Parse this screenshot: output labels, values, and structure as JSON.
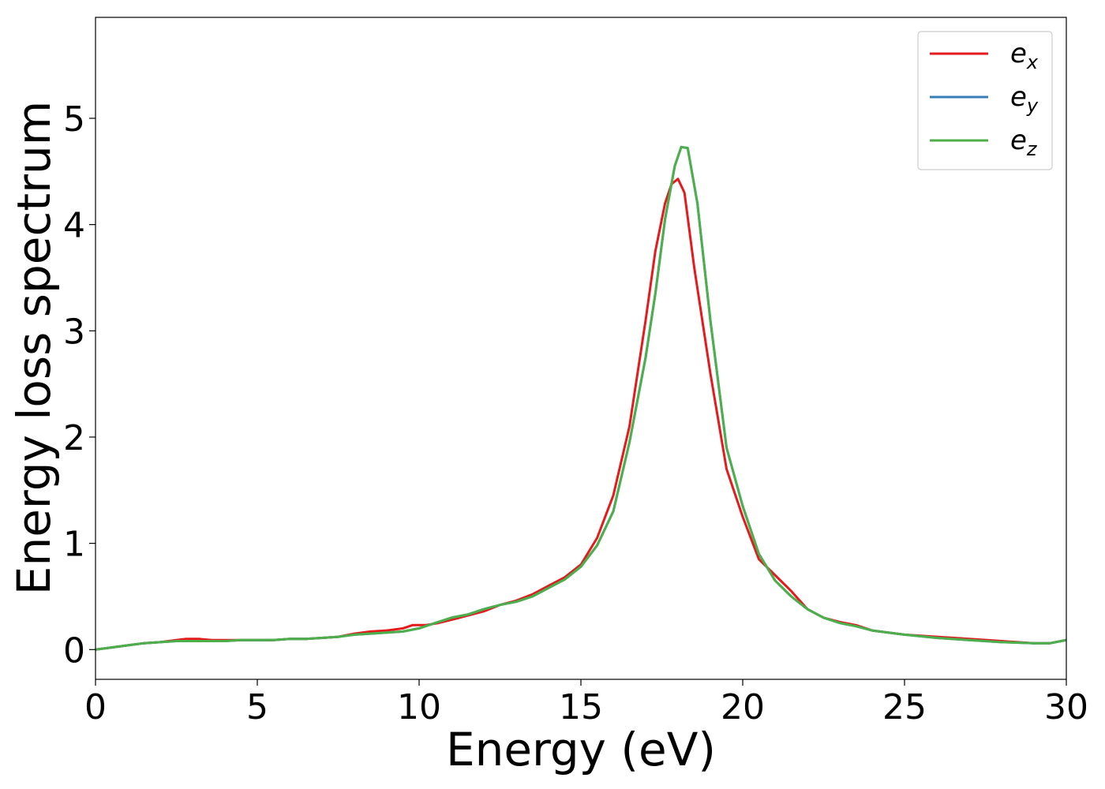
{
  "chart_data": {
    "type": "line",
    "title": "",
    "xlabel": "Energy (eV)",
    "ylabel": "Energy loss spectrum",
    "xlim": [
      0,
      30
    ],
    "ylim": [
      -0.28,
      5.95
    ],
    "xticks": [
      0,
      5,
      10,
      15,
      20,
      25,
      30
    ],
    "yticks": [
      0,
      1,
      2,
      3,
      4,
      5
    ],
    "grid": false,
    "legend_position": "top-right",
    "series": [
      {
        "name": "e",
        "name_subscript": "x",
        "color": "#e41a1c",
        "x": [
          0,
          0.5,
          1,
          1.5,
          2,
          2.5,
          2.8,
          3.2,
          3.6,
          4,
          4.5,
          5,
          5.5,
          6,
          6.5,
          7,
          7.5,
          8,
          8.5,
          9,
          9.5,
          9.8,
          10.2,
          10.6,
          11,
          11.5,
          12,
          12.5,
          13,
          13.5,
          14,
          14.5,
          15,
          15.5,
          16,
          16.5,
          17,
          17.3,
          17.6,
          17.8,
          18,
          18.2,
          18.5,
          19,
          19.5,
          20,
          20.5,
          21,
          21.5,
          22,
          22.5,
          23,
          23.5,
          24,
          25,
          26,
          27,
          28,
          29,
          29.5,
          30
        ],
        "y": [
          0.0,
          0.02,
          0.04,
          0.06,
          0.07,
          0.09,
          0.1,
          0.1,
          0.09,
          0.09,
          0.09,
          0.09,
          0.09,
          0.1,
          0.1,
          0.11,
          0.12,
          0.15,
          0.17,
          0.18,
          0.2,
          0.23,
          0.23,
          0.25,
          0.28,
          0.32,
          0.36,
          0.42,
          0.46,
          0.52,
          0.6,
          0.68,
          0.8,
          1.05,
          1.45,
          2.1,
          3.1,
          3.75,
          4.2,
          4.38,
          4.43,
          4.3,
          3.6,
          2.6,
          1.7,
          1.25,
          0.85,
          0.7,
          0.55,
          0.38,
          0.3,
          0.26,
          0.23,
          0.18,
          0.14,
          0.12,
          0.1,
          0.08,
          0.06,
          0.06,
          0.09
        ]
      },
      {
        "name": "e",
        "name_subscript": "y",
        "color": "#377eb8",
        "x": [
          0,
          0.5,
          1,
          1.5,
          2,
          2.5,
          3,
          3.5,
          4,
          4.5,
          5,
          5.5,
          6,
          6.5,
          7,
          7.5,
          8,
          8.5,
          9,
          9.5,
          10,
          10.5,
          11,
          11.5,
          12,
          12.5,
          13,
          13.5,
          14,
          14.5,
          15,
          15.5,
          16,
          16.5,
          17,
          17.3,
          17.6,
          17.9,
          18.1,
          18.3,
          18.6,
          19,
          19.5,
          20,
          20.5,
          21,
          21.5,
          22,
          22.5,
          23,
          23.5,
          24,
          25,
          26,
          27,
          28,
          29,
          29.5,
          30
        ],
        "y": [
          0.0,
          0.02,
          0.04,
          0.06,
          0.07,
          0.08,
          0.08,
          0.08,
          0.08,
          0.09,
          0.09,
          0.09,
          0.1,
          0.1,
          0.11,
          0.12,
          0.14,
          0.15,
          0.16,
          0.17,
          0.2,
          0.25,
          0.3,
          0.33,
          0.38,
          0.42,
          0.45,
          0.5,
          0.58,
          0.66,
          0.78,
          0.98,
          1.3,
          1.95,
          2.75,
          3.35,
          4.05,
          4.55,
          4.73,
          4.72,
          4.2,
          3.1,
          1.9,
          1.35,
          0.9,
          0.65,
          0.5,
          0.38,
          0.3,
          0.25,
          0.22,
          0.18,
          0.14,
          0.11,
          0.09,
          0.07,
          0.06,
          0.06,
          0.09
        ]
      },
      {
        "name": "e",
        "name_subscript": "z",
        "color": "#4daf4a",
        "x": [
          0,
          0.5,
          1,
          1.5,
          2,
          2.5,
          3,
          3.5,
          4,
          4.5,
          5,
          5.5,
          6,
          6.5,
          7,
          7.5,
          8,
          8.5,
          9,
          9.5,
          10,
          10.5,
          11,
          11.5,
          12,
          12.5,
          13,
          13.5,
          14,
          14.5,
          15,
          15.5,
          16,
          16.5,
          17,
          17.3,
          17.6,
          17.9,
          18.1,
          18.3,
          18.6,
          19,
          19.5,
          20,
          20.5,
          21,
          21.5,
          22,
          22.5,
          23,
          23.5,
          24,
          25,
          26,
          27,
          28,
          29,
          29.5,
          30
        ],
        "y": [
          0.0,
          0.02,
          0.04,
          0.06,
          0.07,
          0.08,
          0.08,
          0.08,
          0.08,
          0.09,
          0.09,
          0.09,
          0.1,
          0.1,
          0.11,
          0.12,
          0.14,
          0.15,
          0.16,
          0.17,
          0.2,
          0.25,
          0.3,
          0.33,
          0.38,
          0.42,
          0.45,
          0.5,
          0.58,
          0.66,
          0.78,
          0.98,
          1.3,
          1.95,
          2.75,
          3.35,
          4.05,
          4.55,
          4.73,
          4.72,
          4.2,
          3.1,
          1.9,
          1.35,
          0.9,
          0.65,
          0.5,
          0.38,
          0.3,
          0.25,
          0.22,
          0.18,
          0.14,
          0.11,
          0.09,
          0.07,
          0.06,
          0.06,
          0.09
        ]
      }
    ]
  }
}
